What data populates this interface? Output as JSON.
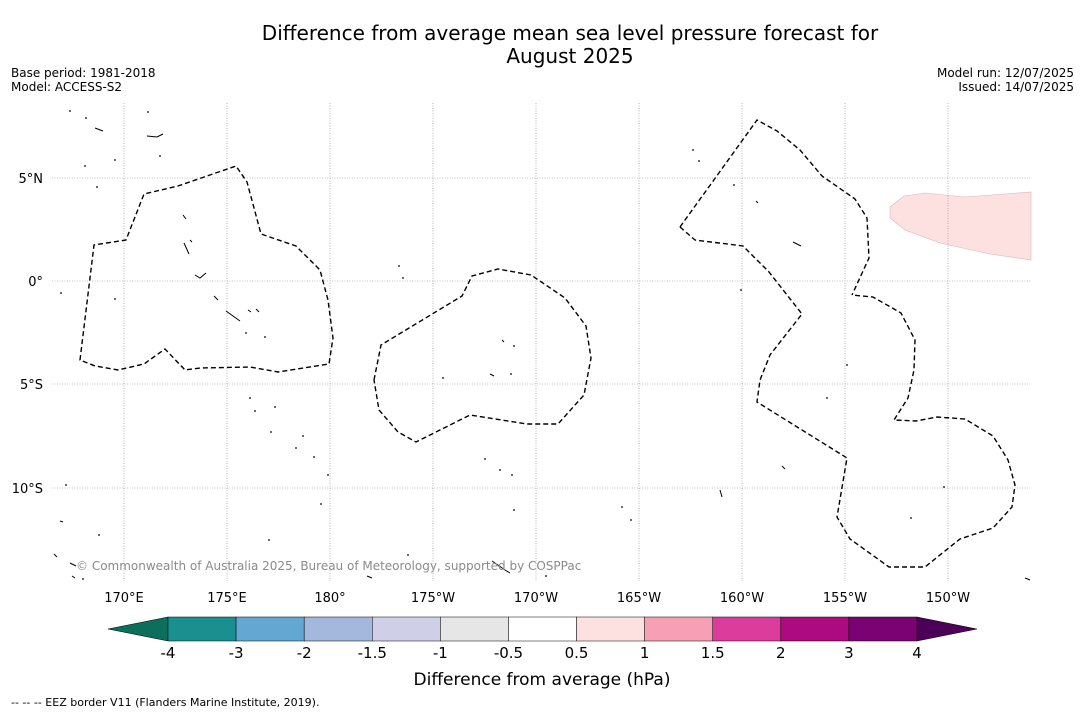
{
  "title": {
    "line1": "Difference from average mean sea level pressure forecast for",
    "line2": "August 2025"
  },
  "meta": {
    "base_period": "Base period: 1981-2018",
    "model": "Model: ACCESS-S2",
    "model_run": "Model run: 12/07/2025",
    "issued": "Issued: 14/07/2025"
  },
  "map": {
    "lat_labels": [
      "5°N",
      "0°",
      "5°S",
      "10°S"
    ],
    "lon_labels": [
      "170°E",
      "175°E",
      "180°",
      "175°W",
      "170°W",
      "165°W",
      "160°W",
      "155°W",
      "150°W"
    ],
    "copyright": "© Commonwealth of Australia 2025, Bureau of Meteorology, supported by COSPPac",
    "anomaly_fill_color": "#fde0e0"
  },
  "colorbar": {
    "ticks": [
      "-4",
      "-3",
      "-2",
      "-1.5",
      "-1",
      "-0.5",
      "0.5",
      "1",
      "1.5",
      "2",
      "3",
      "4"
    ],
    "colors": [
      "#1a8f8f",
      "#62a8d2",
      "#a3b8dc",
      "#cfd0e8",
      "#e6e6e6",
      "#ffffff",
      "#fde0e0",
      "#f79fb4",
      "#dc3c9c",
      "#ad0a80",
      "#7b0272"
    ],
    "low_extend_color": "#0b6f5c",
    "high_extend_color": "#4d0057",
    "label": "Difference from average (hPa)"
  },
  "footnote": "--  --  -- EEZ border V11 (Flanders Marine Institute, 2019)."
}
